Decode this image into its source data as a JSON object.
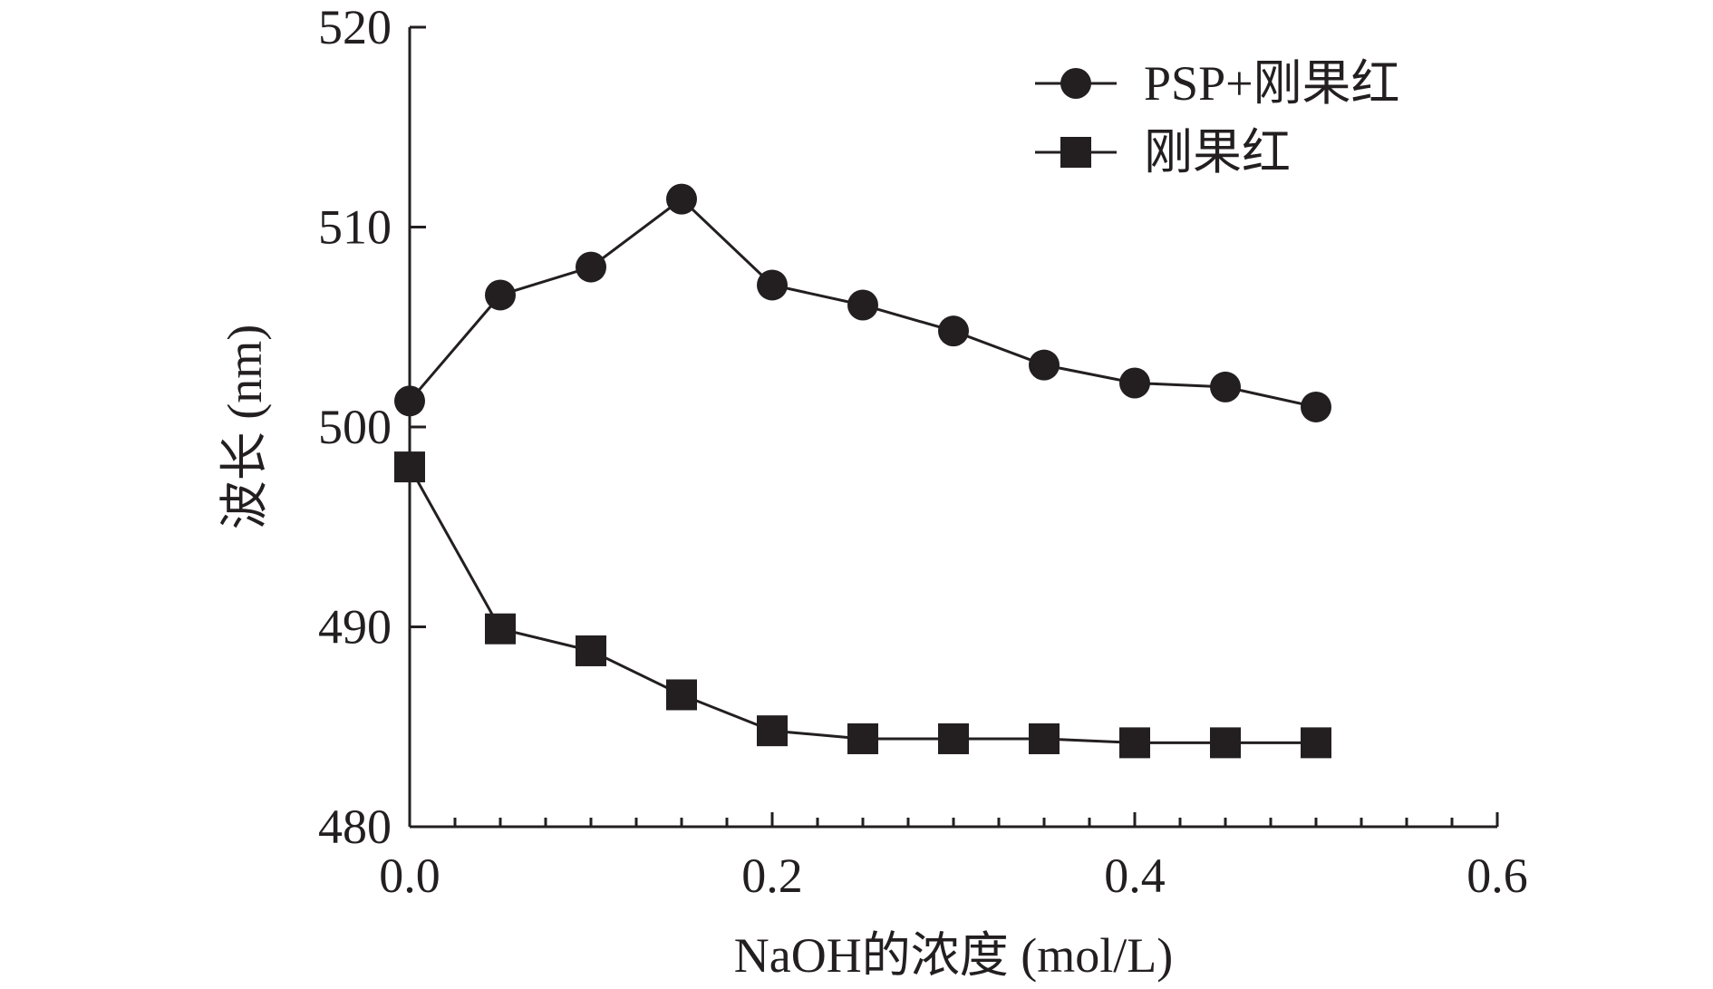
{
  "chart_data": {
    "type": "line",
    "title": "",
    "xlabel": "NaOH的浓度 (mol/L)",
    "ylabel": "波长 (nm)",
    "xlim": [
      0.0,
      0.6
    ],
    "ylim": [
      480,
      520
    ],
    "x_ticks": [
      "0.0",
      "0.2",
      "0.4",
      "0.6"
    ],
    "y_ticks": [
      "480",
      "490",
      "500",
      "510",
      "520"
    ],
    "grid": false,
    "legend_position": "top-right",
    "x": [
      0.0,
      0.05,
      0.1,
      0.15,
      0.2,
      0.25,
      0.3,
      0.35,
      0.4,
      0.45,
      0.5
    ],
    "series": [
      {
        "name": "PSP+刚果红",
        "marker": "circle",
        "color": "#231f20",
        "values": [
          501.3,
          506.6,
          508.0,
          511.4,
          507.1,
          506.1,
          504.8,
          503.1,
          502.2,
          502.0,
          501.0
        ]
      },
      {
        "name": "刚果红",
        "marker": "square",
        "color": "#231f20",
        "values": [
          498.0,
          489.9,
          488.8,
          486.6,
          484.8,
          484.4,
          484.4,
          484.4,
          484.2,
          484.2,
          484.2
        ]
      }
    ]
  }
}
